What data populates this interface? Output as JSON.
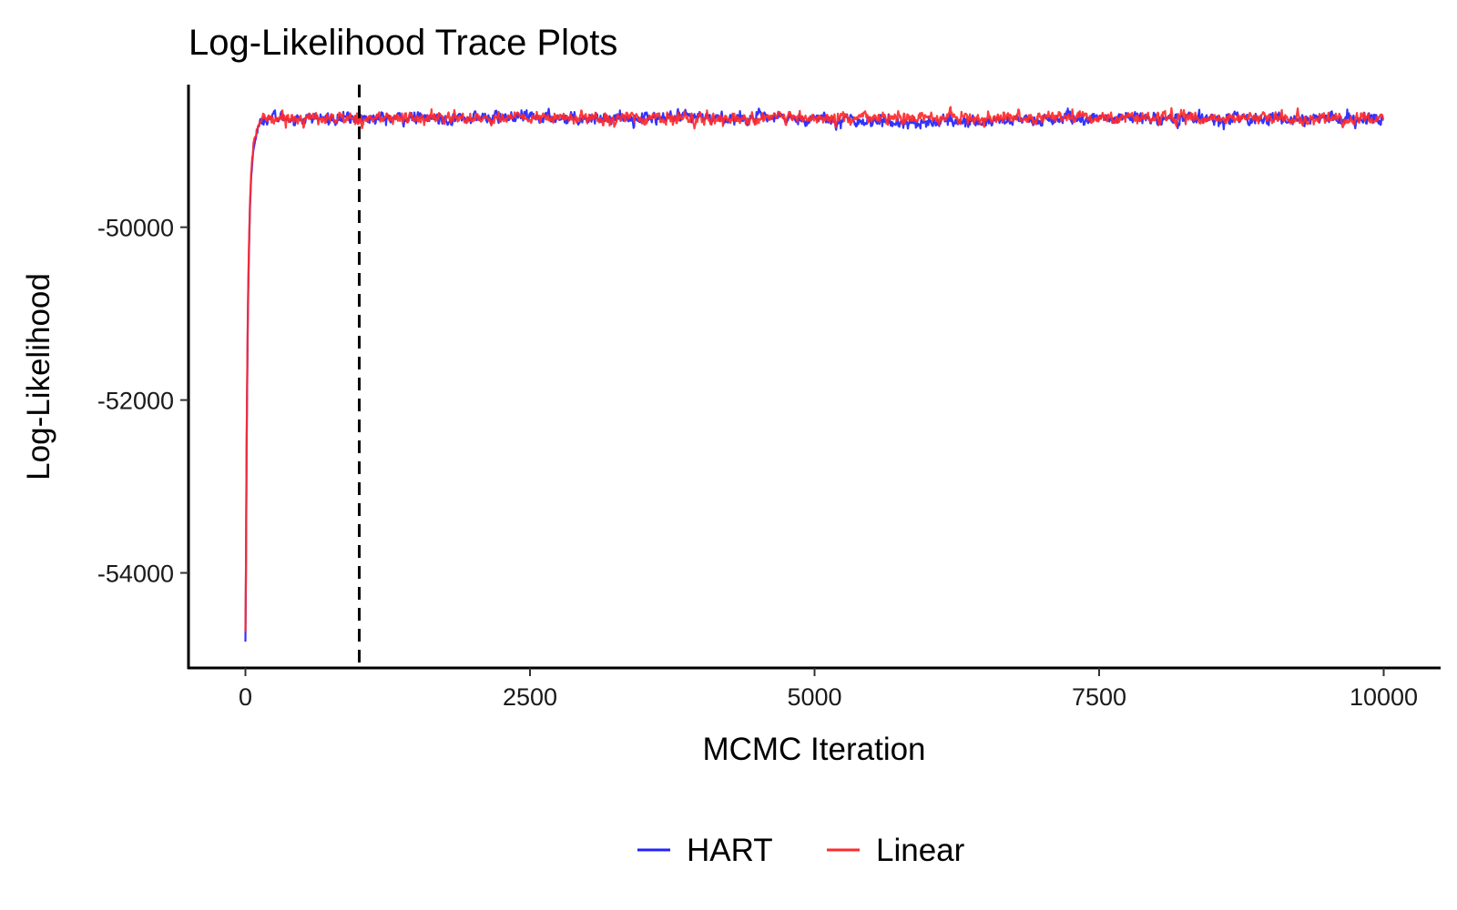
{
  "chart_data": {
    "type": "line",
    "title": "Log-Likelihood Trace Plots",
    "xlabel": "MCMC Iteration",
    "ylabel": "Log-Likelihood",
    "xlim": [
      -500,
      10500
    ],
    "ylim": [
      -55100,
      -48350
    ],
    "x_ticks": [
      0,
      2500,
      5000,
      7500,
      10000
    ],
    "x_tick_labels": [
      "0",
      "2500",
      "5000",
      "7500",
      "10000"
    ],
    "y_ticks": [
      -50000,
      -52000,
      -54000
    ],
    "y_tick_labels": [
      "-50000",
      "-52000",
      "-54000"
    ],
    "grid": false,
    "legend_position": "bottom",
    "burn_in_line": {
      "x": 1000,
      "style": "dashed",
      "color": "#000000"
    },
    "series": [
      {
        "name": "HART",
        "color": "#2222ff",
        "start_value": -54800,
        "plateau_reached_at": 150,
        "plateau_mean": -48740,
        "plateau_noise_sd": 30,
        "points": [
          [
            0,
            -54800
          ],
          [
            5,
            -54000
          ],
          [
            10,
            -52600
          ],
          [
            20,
            -51200
          ],
          [
            30,
            -50300
          ],
          [
            40,
            -49800
          ],
          [
            50,
            -49450
          ],
          [
            60,
            -49250
          ],
          [
            75,
            -49050
          ],
          [
            100,
            -48900
          ],
          [
            125,
            -48800
          ],
          [
            150,
            -48750
          ],
          [
            200,
            -48730
          ],
          [
            500,
            -48740
          ],
          [
            1000,
            -48740
          ],
          [
            2500,
            -48730
          ],
          [
            5000,
            -48740
          ],
          [
            5800,
            -48790
          ],
          [
            7500,
            -48740
          ],
          [
            10000,
            -48750
          ]
        ]
      },
      {
        "name": "Linear",
        "color": "#ff2a2a",
        "start_value": -54700,
        "plateau_reached_at": 150,
        "plateau_mean": -48740,
        "plateau_noise_sd": 30,
        "points": [
          [
            0,
            -54700
          ],
          [
            5,
            -53900
          ],
          [
            10,
            -52500
          ],
          [
            20,
            -51100
          ],
          [
            30,
            -50250
          ],
          [
            40,
            -49750
          ],
          [
            50,
            -49400
          ],
          [
            60,
            -49200
          ],
          [
            75,
            -49020
          ],
          [
            100,
            -48880
          ],
          [
            125,
            -48790
          ],
          [
            150,
            -48745
          ],
          [
            200,
            -48730
          ],
          [
            500,
            -48740
          ],
          [
            1000,
            -48740
          ],
          [
            2500,
            -48735
          ],
          [
            5000,
            -48745
          ],
          [
            7500,
            -48730
          ],
          [
            10000,
            -48750
          ]
        ]
      }
    ]
  }
}
